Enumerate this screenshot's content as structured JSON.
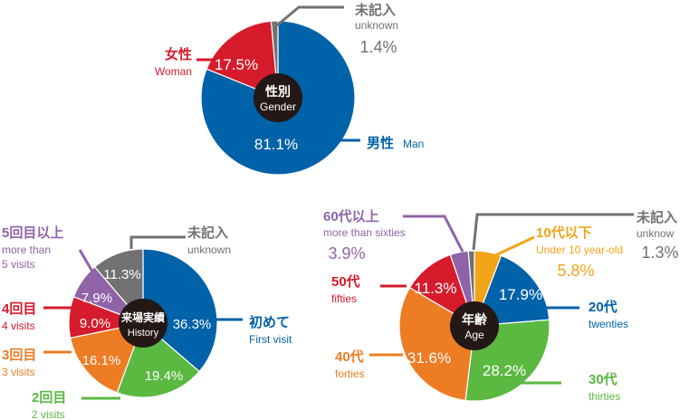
{
  "chart_data": [
    {
      "type": "pie",
      "title": "性別",
      "subtitle": "Gender",
      "series": [
        {
          "values": [
            {
              "label_ja": "男性",
              "label_en": "Man",
              "value": 81.1,
              "pct_text": "81.1%",
              "color": "#0062a8"
            },
            {
              "label_ja": "女性",
              "label_en": "Woman",
              "value": 17.5,
              "pct_text": "17.5%",
              "color": "#d61b2c"
            },
            {
              "label_ja": "未記入",
              "label_en": "unknown",
              "value": 1.4,
              "pct_text": "1.4%",
              "color": "#727171"
            }
          ]
        }
      ]
    },
    {
      "type": "pie",
      "title": "来場実績",
      "subtitle": "History",
      "series": [
        {
          "values": [
            {
              "label_ja": "初めて",
              "label_en": "First visit",
              "value": 36.3,
              "pct_text": "36.3%",
              "color": "#0062a8"
            },
            {
              "label_ja": "2回目",
              "label_en": "2 visits",
              "value": 19.4,
              "pct_text": "19.4%",
              "color": "#5bb841"
            },
            {
              "label_ja": "3回目",
              "label_en": "3 visits",
              "value": 16.1,
              "pct_text": "16.1%",
              "color": "#ee7c23"
            },
            {
              "label_ja": "4回目",
              "label_en": "4 visits",
              "value": 9.0,
              "pct_text": "9.0%",
              "color": "#d61b2c"
            },
            {
              "label_ja": "5回目以上",
              "label_en": "more than 5 visits",
              "value": 7.9,
              "pct_text": "7.9%",
              "color": "#8f63a8"
            },
            {
              "label_ja": "未記入",
              "label_en": "unknown",
              "value": 11.3,
              "pct_text": "11.3%",
              "color": "#727171"
            }
          ]
        }
      ]
    },
    {
      "type": "pie",
      "title": "年齢",
      "subtitle": "Age",
      "series": [
        {
          "values": [
            {
              "label_ja": "10代以下",
              "label_en": "Under 10 year-old",
              "value": 5.8,
              "pct_text": "5.8%",
              "color": "#f2a418"
            },
            {
              "label_ja": "20代",
              "label_en": "twenties",
              "value": 17.9,
              "pct_text": "17.9%",
              "color": "#0062a8"
            },
            {
              "label_ja": "30代",
              "label_en": "thirties",
              "value": 28.2,
              "pct_text": "28.2%",
              "color": "#5bb841"
            },
            {
              "label_ja": "40代",
              "label_en": "forties",
              "value": 31.6,
              "pct_text": "31.6%",
              "color": "#ee7c23"
            },
            {
              "label_ja": "50代",
              "label_en": "fifties",
              "value": 11.3,
              "pct_text": "11.3%",
              "color": "#d61b2c"
            },
            {
              "label_ja": "60代以上",
              "label_en": "more than sixties",
              "value": 3.9,
              "pct_text": "3.9%",
              "color": "#8f63a8"
            },
            {
              "label_ja": "未記入",
              "label_en": "unknow",
              "value": 1.3,
              "pct_text": "1.3%",
              "color": "#727171"
            }
          ]
        }
      ]
    }
  ]
}
